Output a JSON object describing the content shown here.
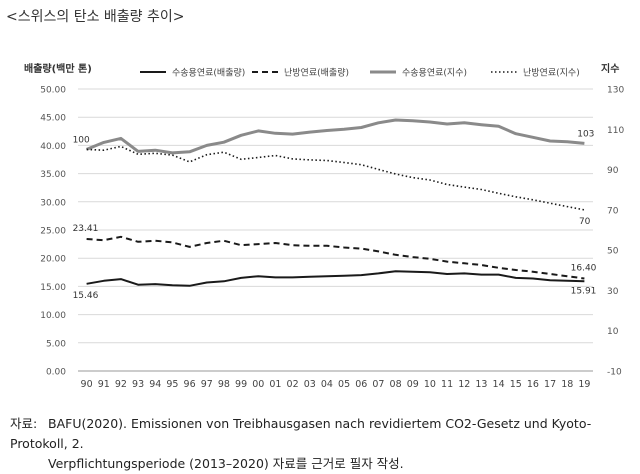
{
  "title": "<스위스의 탄소 배출량 추이>",
  "chart_data": {
    "type": "line",
    "title": "",
    "ylabel": "배출량(백만 톤)",
    "y2label": "지수",
    "x": [
      "90",
      "91",
      "92",
      "93",
      "94",
      "95",
      "96",
      "97",
      "98",
      "99",
      "00",
      "01",
      "02",
      "03",
      "04",
      "05",
      "06",
      "07",
      "08",
      "09",
      "10",
      "11",
      "12",
      "13",
      "14",
      "15",
      "16",
      "17",
      "18",
      "19"
    ],
    "ylim": [
      0,
      50
    ],
    "y2lim": [
      -10,
      130
    ],
    "yticks": [
      "0.00",
      "5.00",
      "10.00",
      "15.00",
      "20.00",
      "25.00",
      "30.00",
      "35.00",
      "40.00",
      "45.00",
      "50.00"
    ],
    "y2ticks": [
      "-10",
      "10",
      "30",
      "50",
      "70",
      "90",
      "110",
      "130"
    ],
    "legend_position": "top",
    "grid": true,
    "series": [
      {
        "name": "수송용연료(배출량)",
        "axis": "left",
        "style": "solid",
        "color": "#1a1a1a",
        "values": [
          15.46,
          16.0,
          16.3,
          15.3,
          15.4,
          15.2,
          15.1,
          15.7,
          15.9,
          16.5,
          16.8,
          16.6,
          16.6,
          16.7,
          16.8,
          16.9,
          17.0,
          17.3,
          17.7,
          17.6,
          17.5,
          17.2,
          17.3,
          17.1,
          17.1,
          16.5,
          16.4,
          16.1,
          16.0,
          15.91
        ]
      },
      {
        "name": "난방연료(배출량)",
        "axis": "left",
        "style": "dashed",
        "color": "#1a1a1a",
        "values": [
          23.41,
          23.2,
          23.8,
          22.9,
          23.1,
          22.8,
          22.0,
          22.7,
          23.1,
          22.3,
          22.5,
          22.7,
          22.3,
          22.2,
          22.2,
          21.9,
          21.7,
          21.2,
          20.6,
          20.2,
          19.9,
          19.4,
          19.1,
          18.8,
          18.3,
          17.9,
          17.6,
          17.2,
          16.8,
          16.4
        ]
      },
      {
        "name": "수송용연료(지수)",
        "axis": "right",
        "style": "solid-thick",
        "color": "#8a8a8a",
        "values": [
          100,
          103.5,
          105.5,
          99,
          99.6,
          98.3,
          98.8,
          102,
          103.6,
          107,
          109.2,
          108,
          107.6,
          108.6,
          109.4,
          110,
          110.9,
          113.2,
          114.6,
          114.2,
          113.6,
          112.6,
          113.2,
          112.3,
          111.5,
          107.8,
          106,
          104.2,
          103.8,
          103
        ]
      },
      {
        "name": "난방연료(지수)",
        "axis": "right",
        "style": "dotted",
        "color": "#1a1a1a",
        "values": [
          100,
          99.6,
          101.5,
          97.6,
          98.1,
          97.2,
          93.8,
          97.4,
          98.6,
          95.1,
          96,
          97,
          95.3,
          94.8,
          94.5,
          93.5,
          92.4,
          90.1,
          87.8,
          86,
          84.8,
          82.6,
          81.3,
          80.1,
          78.2,
          76.5,
          75,
          73.3,
          71.6,
          70
        ]
      }
    ],
    "annotations": [
      {
        "series": 0,
        "index": 0,
        "text": "15.46"
      },
      {
        "series": 0,
        "index": 29,
        "text": "15.91"
      },
      {
        "series": 1,
        "index": 0,
        "text": "23.41"
      },
      {
        "series": 1,
        "index": 29,
        "text": "16.40"
      },
      {
        "series": 2,
        "index": 0,
        "text": "100"
      },
      {
        "series": 2,
        "index": 29,
        "text": "103"
      },
      {
        "series": 3,
        "index": 29,
        "text": "70"
      }
    ]
  },
  "source": {
    "label": "자료:",
    "line1": "BAFU(2020). Emissionen von Treibhausgasen nach revidiertem CO2-Gesetz und Kyoto-Protokoll, 2.",
    "line2": "Verpflichtungsperiode (2013–2020) 자료를 근거로 필자 작성."
  }
}
